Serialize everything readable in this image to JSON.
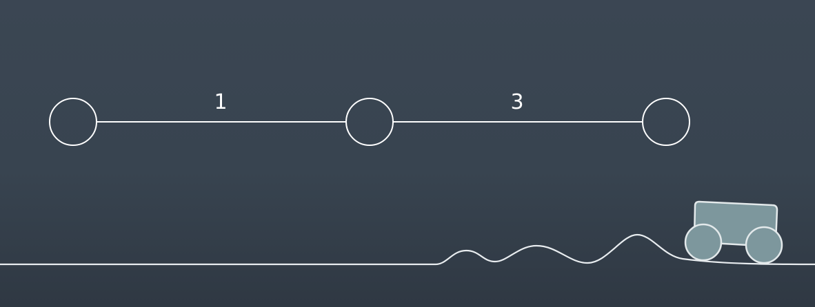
{
  "graph": {
    "nodes": [
      {
        "id": "n1"
      },
      {
        "id": "n2"
      },
      {
        "id": "n3"
      }
    ],
    "edges": [
      {
        "from": "n1",
        "to": "n2",
        "label": "1"
      },
      {
        "from": "n2",
        "to": "n3",
        "label": "3"
      }
    ]
  },
  "colors": {
    "stroke": "#ffffff",
    "vehicle_body": "#7d979d",
    "vehicle_outline": "#e3e9eb",
    "terrain": "#e9edf0"
  },
  "icons": {
    "vehicle": "rover-icon"
  }
}
